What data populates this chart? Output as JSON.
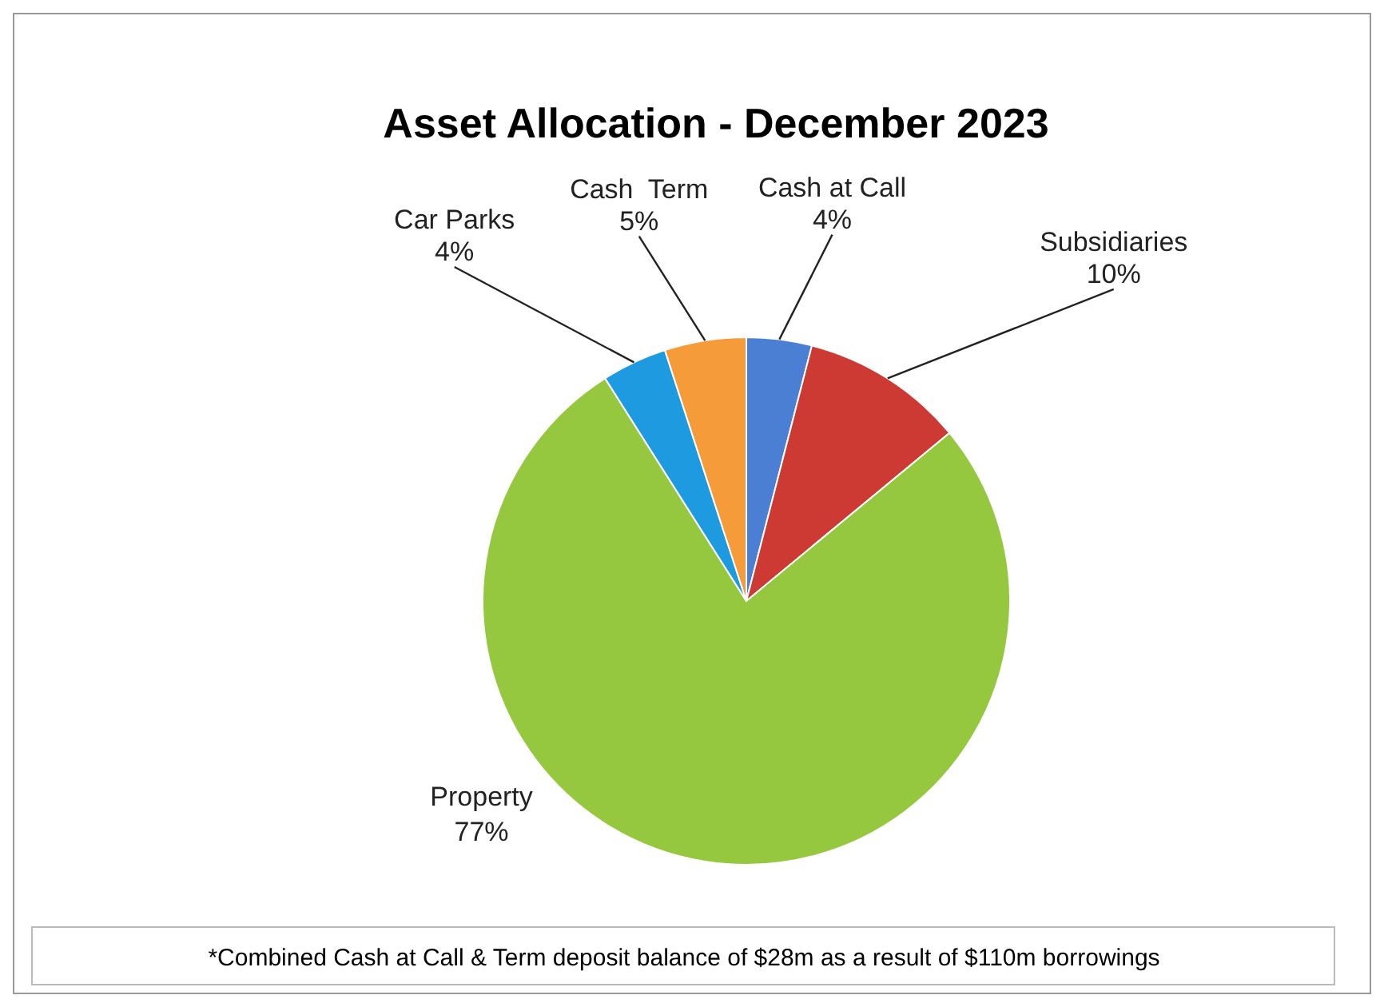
{
  "chart_data": {
    "type": "pie",
    "title": "Asset Allocation - December 2023",
    "categories": [
      "Cash at Call",
      "Subsidiaries",
      "Property",
      "Car Parks",
      "Cash  Term"
    ],
    "values": [
      4,
      10,
      77,
      4,
      5
    ],
    "colors": [
      "#4a7fd4",
      "#cc3a33",
      "#95c83f",
      "#1e9be0",
      "#f59b3a"
    ],
    "value_labels": [
      "4%",
      "10%",
      "77%",
      "4%",
      "5%"
    ],
    "annotations": [
      "*Combined Cash at Call & Term deposit balance of $28m as a result of $110m borrowings"
    ]
  }
}
